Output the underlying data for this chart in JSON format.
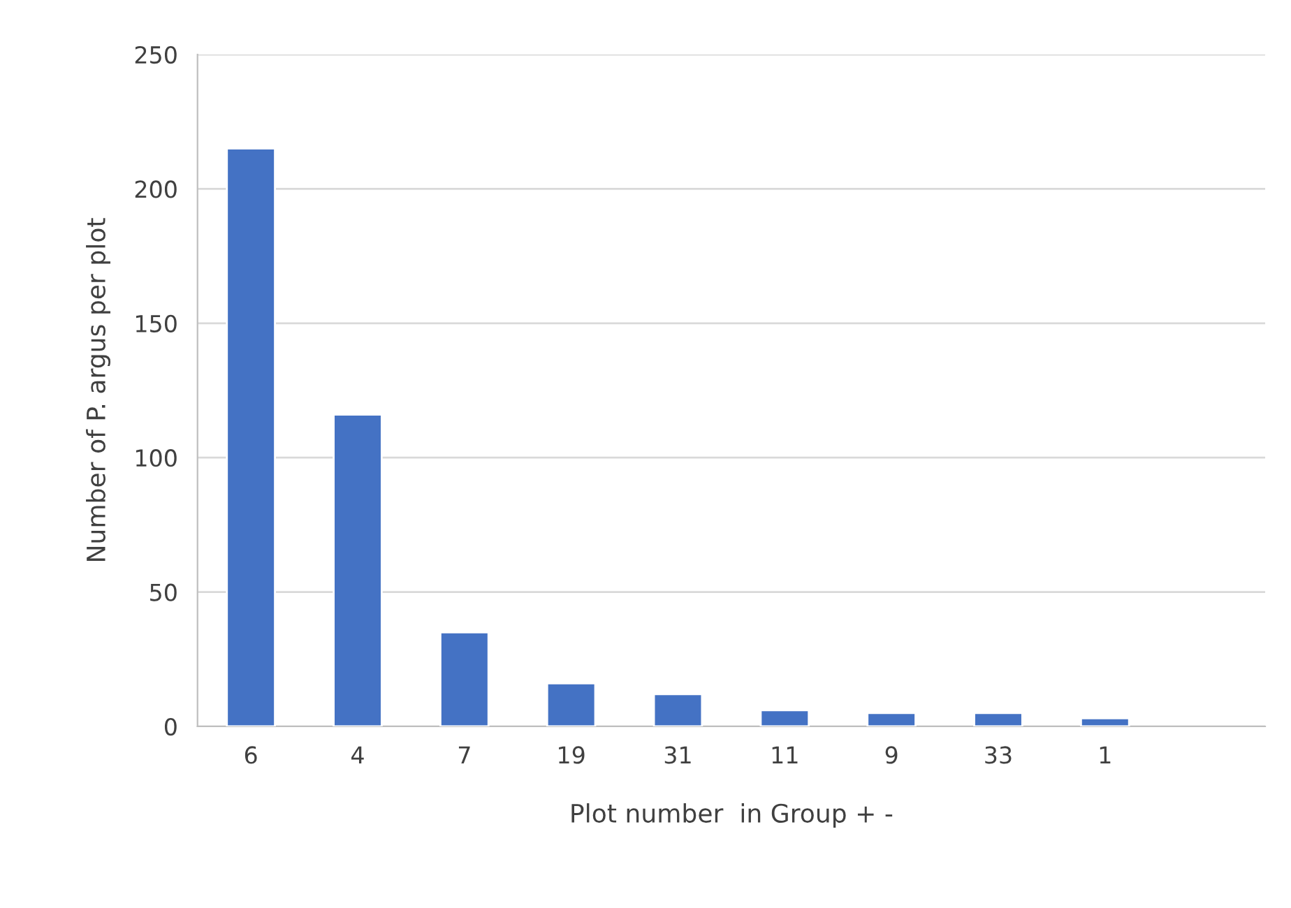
{
  "chart_data": {
    "type": "bar",
    "categories": [
      "6",
      "4",
      "7",
      "19",
      "31",
      "11",
      "9",
      "33",
      "1",
      null
    ],
    "values": [
      215,
      116,
      35,
      16,
      12,
      6,
      5,
      5,
      3,
      null
    ],
    "color": "#4472c4",
    "xlabel": "Plot number  in Group + -",
    "ylabel": "Number of P. argus per plot",
    "ylim": [
      0,
      250
    ],
    "yticks": [
      0,
      50,
      100,
      150,
      200,
      250
    ],
    "grid": "y"
  }
}
